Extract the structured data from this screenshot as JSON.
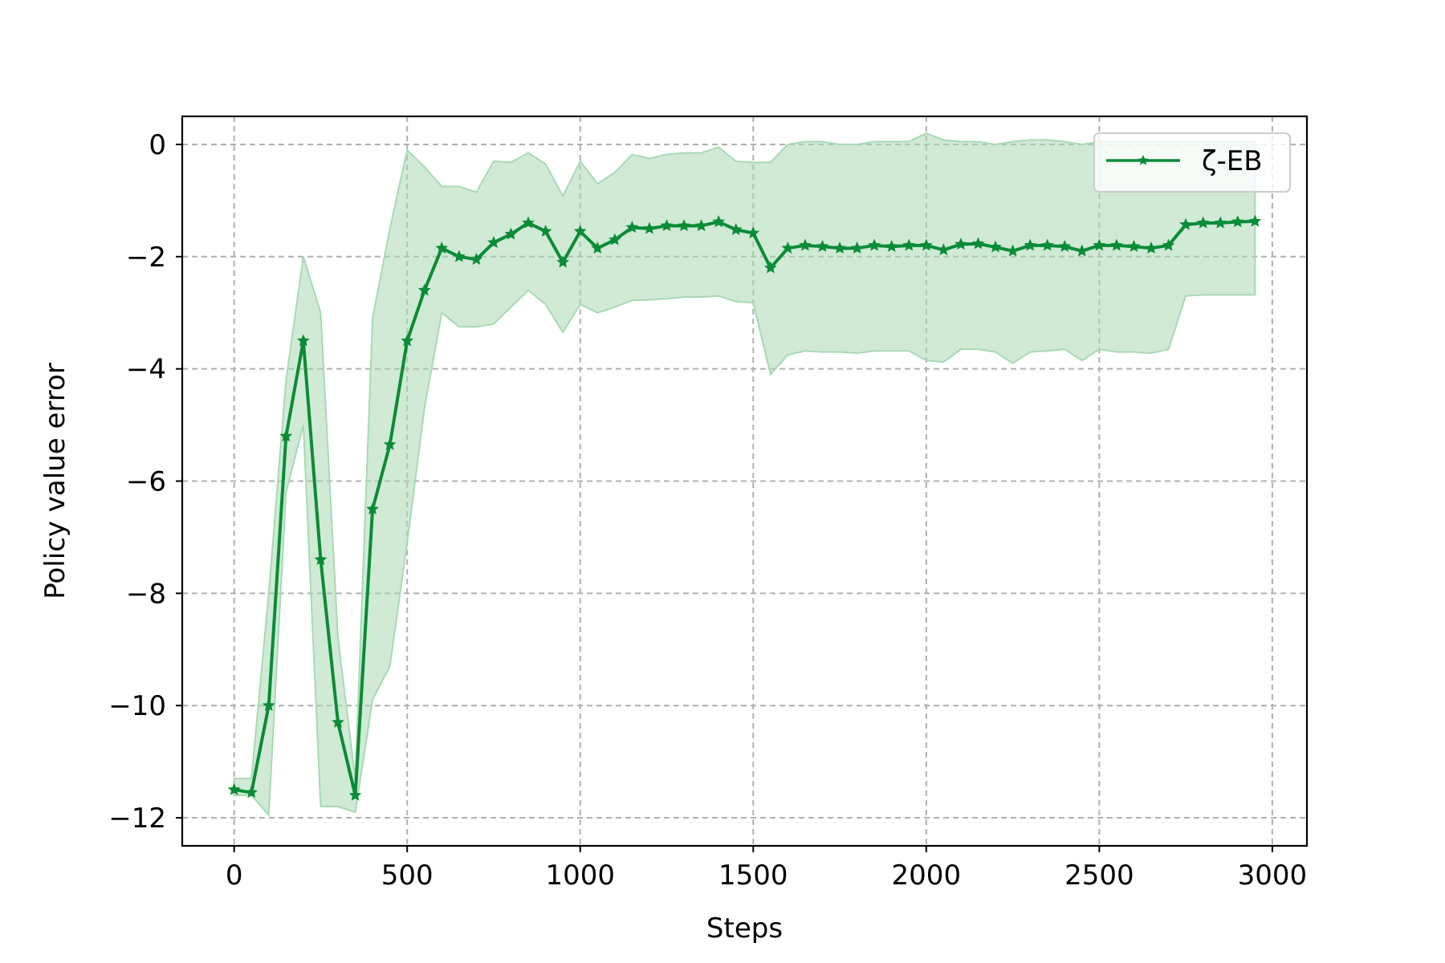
{
  "chart_data": {
    "type": "line",
    "title": "",
    "xlabel": "Steps",
    "ylabel": "Policy value error",
    "xlim": [
      -150,
      3100
    ],
    "ylim": [
      -12.5,
      0.5
    ],
    "xticks": [
      0,
      500,
      1000,
      1500,
      2000,
      2500,
      3000
    ],
    "yticks": [
      0,
      -2,
      -4,
      -6,
      -8,
      -10,
      -12
    ],
    "ytick_labels": [
      "0",
      "−2",
      "−4",
      "−6",
      "−8",
      "−10",
      "−12"
    ],
    "grid": true,
    "legend_position": "top-right",
    "series": [
      {
        "name": "ζ-EB",
        "color": "#0a8c36",
        "band_color": "#a9d9b5",
        "marker": "star",
        "x": [
          0,
          50,
          100,
          150,
          200,
          250,
          300,
          350,
          400,
          450,
          500,
          550,
          600,
          650,
          700,
          750,
          800,
          850,
          900,
          950,
          1000,
          1050,
          1100,
          1150,
          1200,
          1250,
          1300,
          1350,
          1400,
          1450,
          1500,
          1550,
          1600,
          1650,
          1700,
          1750,
          1800,
          1850,
          1900,
          1950,
          2000,
          2050,
          2100,
          2150,
          2200,
          2250,
          2300,
          2350,
          2400,
          2450,
          2500,
          2550,
          2600,
          2650,
          2700,
          2750,
          2800,
          2850,
          2900,
          2950
        ],
        "y": [
          -11.5,
          -11.55,
          -10.0,
          -5.2,
          -3.5,
          -7.4,
          -10.3,
          -11.6,
          -6.5,
          -5.35,
          -3.5,
          -2.6,
          -1.85,
          -2.0,
          -2.05,
          -1.75,
          -1.6,
          -1.4,
          -1.55,
          -2.1,
          -1.55,
          -1.85,
          -1.7,
          -1.48,
          -1.5,
          -1.45,
          -1.45,
          -1.45,
          -1.38,
          -1.52,
          -1.58,
          -2.2,
          -1.85,
          -1.8,
          -1.82,
          -1.85,
          -1.85,
          -1.8,
          -1.82,
          -1.8,
          -1.8,
          -1.88,
          -1.78,
          -1.77,
          -1.83,
          -1.9,
          -1.8,
          -1.8,
          -1.82,
          -1.9,
          -1.8,
          -1.8,
          -1.82,
          -1.85,
          -1.8,
          -1.43,
          -1.4,
          -1.4,
          -1.38,
          -1.37
        ],
        "upper": [
          -11.3,
          -11.3,
          -8.0,
          -4.2,
          -2.0,
          -3.0,
          -8.8,
          -11.3,
          -3.1,
          -1.5,
          -0.1,
          -0.4,
          -0.75,
          -0.75,
          -0.85,
          -0.3,
          -0.32,
          -0.15,
          -0.35,
          -0.92,
          -0.3,
          -0.7,
          -0.5,
          -0.18,
          -0.25,
          -0.18,
          -0.15,
          -0.15,
          -0.05,
          -0.3,
          -0.32,
          -0.32,
          0.0,
          0.05,
          0.05,
          0.0,
          0.0,
          0.05,
          0.05,
          0.05,
          0.2,
          0.08,
          0.05,
          0.05,
          0.0,
          0.05,
          0.08,
          0.08,
          0.05,
          0.0,
          0.05,
          0.05,
          0.05,
          0.05,
          0.05,
          0.05,
          0.05,
          0.05,
          0.05,
          0.05
        ],
        "lower": [
          -11.6,
          -11.6,
          -11.95,
          -6.2,
          -5.0,
          -11.8,
          -11.8,
          -11.9,
          -9.9,
          -9.3,
          -7.1,
          -4.7,
          -3.0,
          -3.25,
          -3.25,
          -3.2,
          -2.9,
          -2.6,
          -2.85,
          -3.35,
          -2.85,
          -3.0,
          -2.9,
          -2.78,
          -2.77,
          -2.75,
          -2.72,
          -2.72,
          -2.7,
          -2.8,
          -2.82,
          -4.1,
          -3.75,
          -3.68,
          -3.7,
          -3.7,
          -3.72,
          -3.68,
          -3.68,
          -3.68,
          -3.85,
          -3.88,
          -3.65,
          -3.65,
          -3.7,
          -3.9,
          -3.7,
          -3.68,
          -3.65,
          -3.85,
          -3.65,
          -3.7,
          -3.7,
          -3.72,
          -3.65,
          -2.7,
          -2.68,
          -2.68,
          -2.68,
          -2.68
        ]
      }
    ]
  }
}
